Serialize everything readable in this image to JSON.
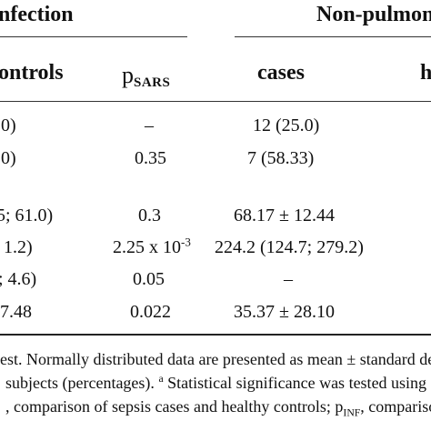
{
  "header": {
    "group_left": "nfection",
    "group_right": "Non-pulmon"
  },
  "columns": {
    "controls": "ontrols",
    "p_sars_main": "p",
    "p_sars_sub": "SARS",
    "cases": "cases",
    "cut_off": "h"
  },
  "rows": [
    {
      "controls": ".0)",
      "p_sars": "–",
      "cases": "12 (25.0)"
    },
    {
      "controls": ".0)",
      "p_sars": "0.35",
      "cases": "7 (58.33)"
    },
    {
      "controls": "5; 61.0)",
      "p_sars": "0.3",
      "cases": "68.17 ± 12.44"
    },
    {
      "controls": "1.2)",
      "p_sars_base": "2.25 x 10",
      "p_sars_exp": "-3",
      "cases": "224.2 (124.7; 279.2)"
    },
    {
      "controls": "; 4.6)",
      "p_sars": "0.05",
      "cases": "–"
    },
    {
      "controls": "7.48",
      "p_sars": "0.022",
      "cases": "35.37 ± 28.10"
    }
  ],
  "footnote": {
    "line1": "est. Normally distributed data are presented as mean ± standard de",
    "line2_a": "subjects (percentages).",
    "line2_sup": "a",
    "line2_b": "Statistical significance was tested using Ch",
    "line3_a": ", comparison of sepsis cases and healthy controls; p",
    "line3_sub": "INF",
    "line3_b": ", compariso"
  }
}
